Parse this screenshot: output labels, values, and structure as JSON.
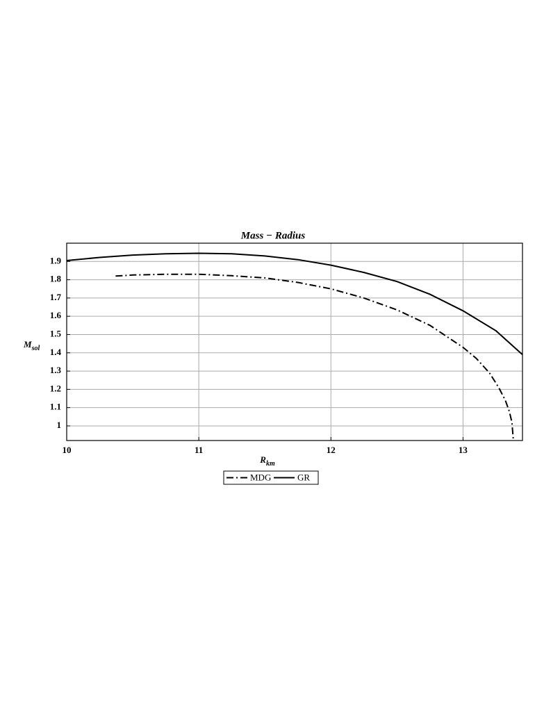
{
  "chart_data": {
    "type": "line",
    "title": "Mass − Radius",
    "xlabel": "R",
    "xlabel_sub": "km",
    "ylabel": "M",
    "ylabel_sub": "sol",
    "xlim": [
      10,
      13.45
    ],
    "ylim": [
      0.92,
      2.0
    ],
    "xticks": [
      10,
      11,
      12,
      13
    ],
    "yticks": [
      1,
      1.1,
      1.2,
      1.3,
      1.4,
      1.5,
      1.6,
      1.7,
      1.8,
      1.9
    ],
    "grid": true,
    "legend": "bottom",
    "series": [
      {
        "name": "MDG",
        "color": "#000000",
        "style": "dashdot",
        "x": [
          10.37,
          10.5,
          10.75,
          11,
          11.25,
          11.5,
          11.75,
          12,
          12.25,
          12.5,
          12.75,
          13,
          13.1,
          13.2,
          13.27,
          13.32,
          13.35,
          13.37,
          13.38
        ],
        "values": [
          1.82,
          1.826,
          1.83,
          1.83,
          1.822,
          1.81,
          1.785,
          1.75,
          1.7,
          1.635,
          1.55,
          1.43,
          1.37,
          1.29,
          1.21,
          1.14,
          1.08,
          1.02,
          0.93
        ]
      },
      {
        "name": "GR",
        "color": "#000000",
        "style": "solid",
        "x": [
          10,
          10.25,
          10.5,
          10.75,
          11,
          11.25,
          11.5,
          11.75,
          12,
          12.25,
          12.5,
          12.75,
          13,
          13.25,
          13.45
        ],
        "values": [
          1.905,
          1.922,
          1.935,
          1.942,
          1.945,
          1.942,
          1.93,
          1.91,
          1.88,
          1.84,
          1.79,
          1.72,
          1.63,
          1.52,
          1.39
        ]
      }
    ]
  }
}
